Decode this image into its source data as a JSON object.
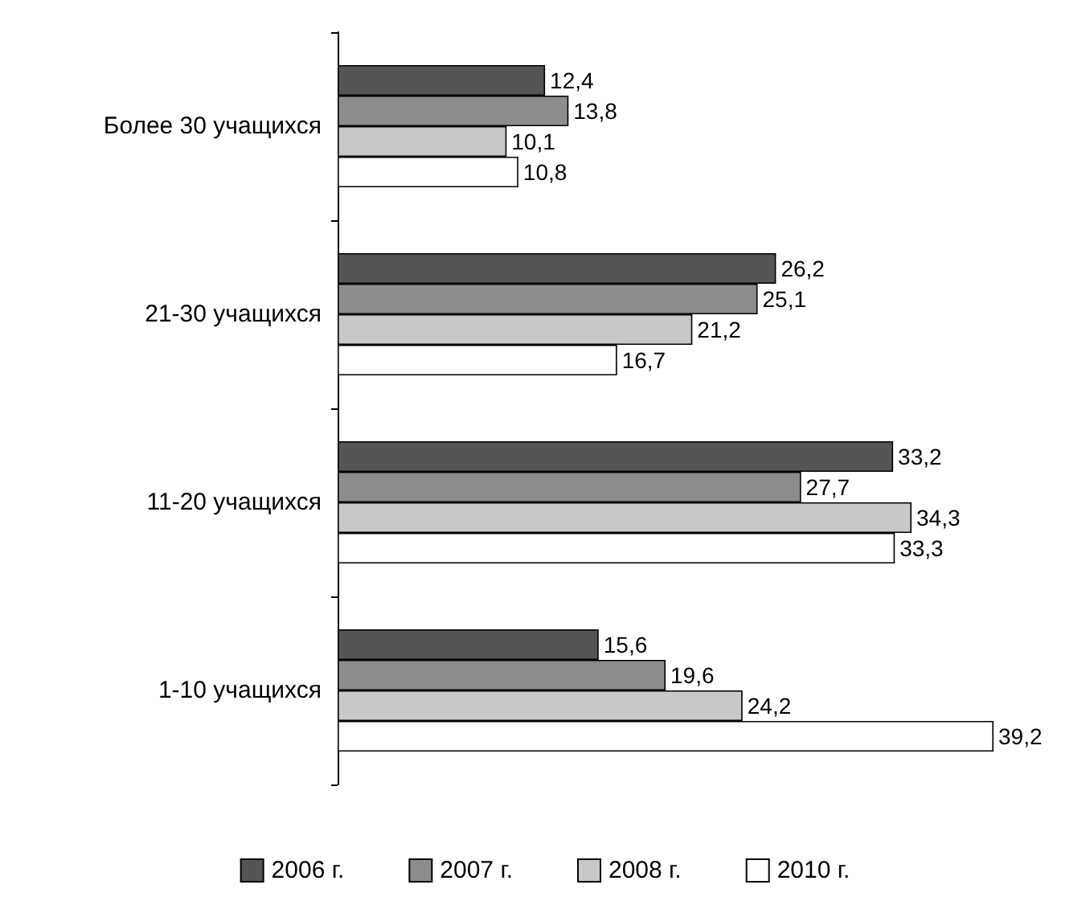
{
  "chart_data": {
    "type": "bar",
    "orientation": "horizontal",
    "categories": [
      "Более 30 учащихся",
      "21-30 учащихся",
      "11-20 учащихся",
      "1-10 учащихся"
    ],
    "series": [
      {
        "name": "2006 г.",
        "color": "#555555",
        "values": [
          12.4,
          26.2,
          33.2,
          15.6
        ],
        "value_labels": [
          "12,4",
          "26,2",
          "33,2",
          "15,6"
        ]
      },
      {
        "name": "2007 г.",
        "color": "#8c8c8c",
        "values": [
          13.8,
          25.1,
          27.7,
          19.6
        ],
        "value_labels": [
          "13,8",
          "25,1",
          "27,7",
          "19,6"
        ]
      },
      {
        "name": "2008 г.",
        "color": "#c8c8c8",
        "values": [
          10.1,
          21.2,
          34.3,
          24.2
        ],
        "value_labels": [
          "10,1",
          "21,2",
          "34,3",
          "24,2"
        ]
      },
      {
        "name": "2010 г.",
        "color": "#ffffff",
        "values": [
          10.8,
          16.7,
          33.3,
          39.2
        ],
        "value_labels": [
          "10,8",
          "16,7",
          "33,3",
          "39,2"
        ]
      }
    ],
    "legend": "bottom",
    "grid": false
  }
}
